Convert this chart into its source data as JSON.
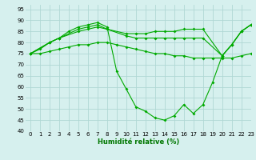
{
  "xlabel": "Humidité relative (%)",
  "bg_color": "#d6f0ee",
  "grid_color": "#b0d8d4",
  "line_color": "#00aa00",
  "xlim": [
    -0.5,
    23
  ],
  "ylim": [
    40,
    97
  ],
  "yticks": [
    40,
    45,
    50,
    55,
    60,
    65,
    70,
    75,
    80,
    85,
    90,
    95
  ],
  "xticks": [
    0,
    1,
    2,
    3,
    4,
    5,
    6,
    7,
    8,
    9,
    10,
    11,
    12,
    13,
    14,
    15,
    16,
    17,
    18,
    19,
    20,
    21,
    22,
    23
  ],
  "series": [
    {
      "x": [
        0,
        1,
        2,
        3,
        4,
        5,
        6,
        7,
        8,
        9,
        10,
        11,
        12,
        13,
        14,
        15,
        16,
        17,
        18,
        19,
        20,
        21,
        22,
        23
      ],
      "y": [
        75,
        77,
        80,
        82,
        85,
        87,
        88,
        89,
        87,
        67,
        59,
        51,
        49,
        46,
        45,
        47,
        52,
        48,
        52,
        62,
        74,
        79,
        85,
        88
      ]
    },
    {
      "x": [
        0,
        2,
        3,
        5,
        6,
        7,
        8,
        10,
        11,
        12,
        13,
        14,
        15,
        16,
        17,
        18,
        20,
        21,
        22,
        23
      ],
      "y": [
        75,
        80,
        82,
        86,
        87,
        88,
        86,
        84,
        84,
        84,
        85,
        85,
        85,
        86,
        86,
        86,
        74,
        79,
        85,
        88
      ]
    },
    {
      "x": [
        0,
        2,
        3,
        5,
        6,
        7,
        8,
        10,
        11,
        12,
        13,
        14,
        15,
        16,
        17,
        18,
        20,
        21,
        22,
        23
      ],
      "y": [
        75,
        80,
        82,
        85,
        86,
        87,
        86,
        83,
        82,
        82,
        82,
        82,
        82,
        82,
        82,
        82,
        74,
        79,
        85,
        88
      ]
    },
    {
      "x": [
        0,
        1,
        2,
        3,
        4,
        5,
        6,
        7,
        8,
        9,
        10,
        11,
        12,
        13,
        14,
        15,
        16,
        17,
        18,
        19,
        20,
        21,
        22,
        23
      ],
      "y": [
        75,
        75,
        76,
        77,
        78,
        79,
        79,
        80,
        80,
        79,
        78,
        77,
        76,
        75,
        75,
        74,
        74,
        73,
        73,
        73,
        73,
        73,
        74,
        75
      ]
    }
  ]
}
